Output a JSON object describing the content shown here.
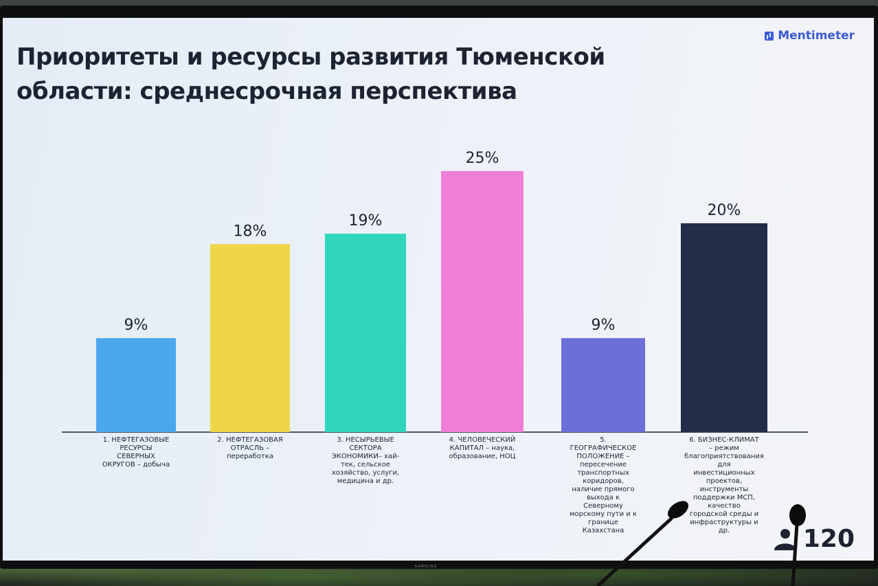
{
  "slide": {
    "title": "Приоритеты и ресурсы развития Тюменской области: среднесрочная перспектива",
    "logo_text": "Mentimeter",
    "participants_count": "120",
    "tv_brand": "SAMSUNG"
  },
  "colors": {
    "bar_1": "#4ba7ec",
    "bar_2": "#eed648",
    "bar_3": "#2fd6bd",
    "bar_4": "#ef7ed6",
    "bar_5": "#6b6fd8",
    "bar_6": "#232d48",
    "text": "#1d2330"
  },
  "chart_data": {
    "type": "bar",
    "title": "Приоритеты и ресурсы развития Тюменской области: среднесрочная перспектива",
    "categories": [
      [
        "1. НЕФТЕГАЗОВЫЕ",
        "РЕСУРСЫ",
        "СЕВЕРНЫХ",
        "ОКРУГОВ – добыча"
      ],
      [
        "2. НЕФТЕГАЗОВАЯ",
        "ОТРАСЛЬ –",
        "переработка"
      ],
      [
        "3. НЕСЫРЬЕВЫЕ",
        "СЕКТОРА",
        "ЭКОНОМИКИ– хай-",
        "тек, сельское",
        "хозяйство, услуги,",
        "медицина и др."
      ],
      [
        "4. ЧЕЛОВЕЧЕСКИЙ",
        "КАПИТАЛ – наука,",
        "образование, НОЦ"
      ],
      [
        "5.",
        "ГЕОГРАФИЧЕСКОЕ",
        "ПОЛОЖЕНИЕ –",
        "пересечение",
        "транспортных",
        "коридоров,",
        "наличие прямого",
        "выхода к",
        "Северному",
        "морскому пути и к",
        "границе",
        "Казахстана"
      ],
      [
        "6. БИЗНЕС-КЛИМАТ",
        "– режим",
        "благоприятствования",
        "для",
        "инвестиционных",
        "проектов,",
        "инструменты",
        "поддержки МСП,",
        "качество",
        "городской среды и",
        "инфраструктуры и",
        "др."
      ]
    ],
    "values": [
      9,
      18,
      19,
      25,
      9,
      20
    ],
    "value_labels": [
      "9%",
      "18%",
      "19%",
      "25%",
      "9%",
      "20%"
    ],
    "unit": "%",
    "grid": false,
    "legend": "none"
  }
}
